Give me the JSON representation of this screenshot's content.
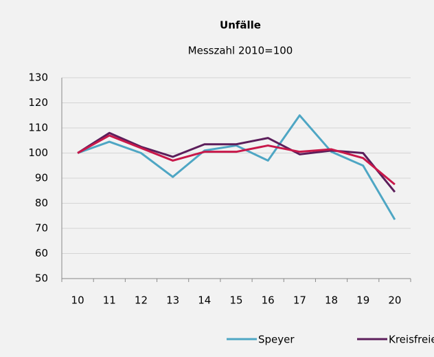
{
  "chart_data": {
    "type": "line",
    "title": "Unfälle",
    "subtitle": "Messzahl 2010=100",
    "categories": [
      "10",
      "11",
      "12",
      "13",
      "14",
      "15",
      "16",
      "17",
      "18",
      "19",
      "20"
    ],
    "series": [
      {
        "name": "Speyer",
        "color": "#4ea6c4",
        "values": [
          100,
          104.5,
          100,
          90.5,
          101,
          103,
          97,
          115,
          100.5,
          95,
          73.5
        ]
      },
      {
        "name": "Kreisfreie",
        "color": "#5c1e5b",
        "values": [
          100,
          108,
          102.5,
          98.5,
          103.5,
          103.5,
          106,
          99.5,
          101,
          100,
          84.5
        ]
      },
      {
        "color": "#c8184a",
        "values": [
          100,
          107,
          102,
          97,
          100.5,
          100.5,
          103,
          100.5,
          101.5,
          98,
          87.5
        ]
      }
    ],
    "ylim": [
      50,
      130
    ],
    "yticks": [
      50,
      60,
      70,
      80,
      90,
      100,
      110,
      120,
      130
    ],
    "grid": true
  }
}
